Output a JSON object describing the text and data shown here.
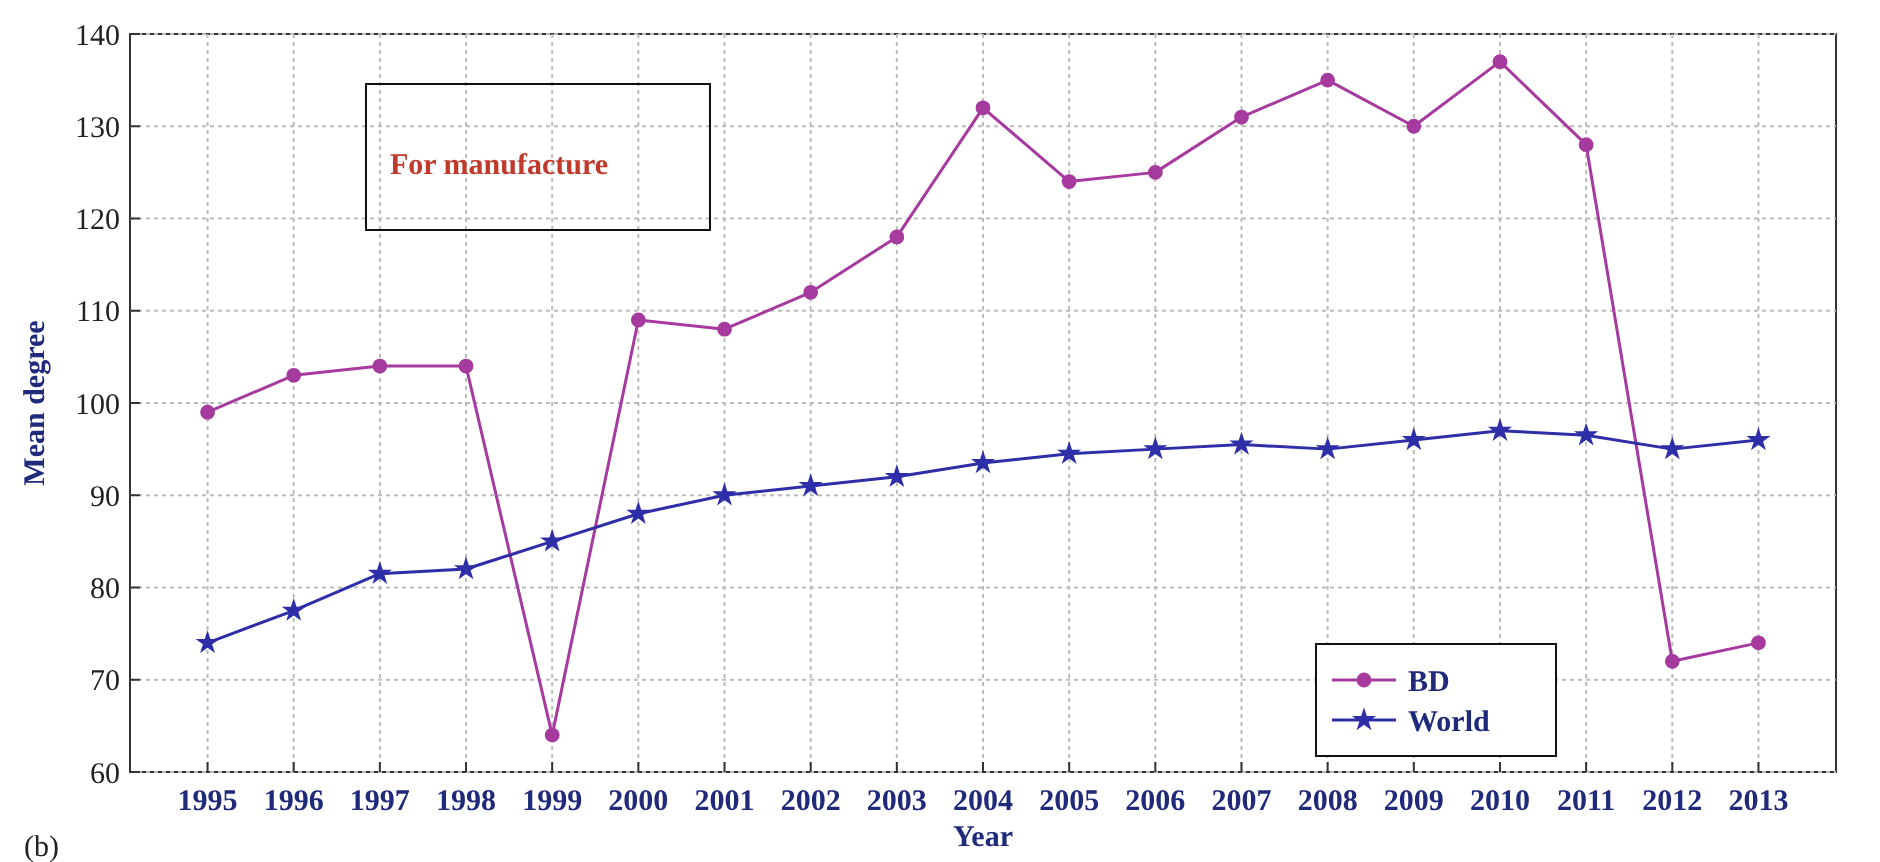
{
  "chart_data": {
    "type": "line",
    "xlabel": "Year",
    "ylabel": "Mean degree",
    "categories": [
      "1995",
      "1996",
      "1997",
      "1998",
      "1999",
      "2000",
      "2001",
      "2002",
      "2003",
      "2004",
      "2005",
      "2006",
      "2007",
      "2008",
      "2009",
      "2010",
      "2011",
      "2012",
      "2013"
    ],
    "series": [
      {
        "name": "BD",
        "color": "#a63a9e",
        "marker": "circle",
        "values": [
          99,
          103,
          104,
          104,
          64,
          109,
          108,
          112,
          118,
          132,
          124,
          125,
          131,
          135,
          130,
          137,
          128,
          72,
          74
        ]
      },
      {
        "name": "World",
        "color": "#2e2ea8",
        "marker": "star",
        "values": [
          74,
          77.5,
          81.5,
          82,
          85,
          88,
          90,
          91,
          92,
          93.5,
          94.5,
          95,
          95.5,
          95,
          96,
          97,
          96.5,
          95,
          96
        ]
      }
    ],
    "ylim": [
      60,
      140
    ],
    "yticks": [
      60,
      70,
      80,
      90,
      100,
      110,
      120,
      130,
      140
    ],
    "grid": true,
    "legend": "bottom right",
    "line_style": "solid",
    "annotations": [
      "For manufacture",
      "(b)"
    ]
  }
}
